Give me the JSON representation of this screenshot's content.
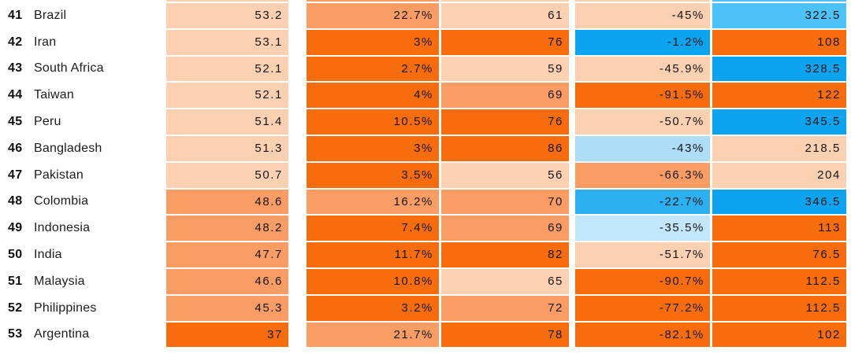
{
  "palette": {
    "p1": "#fcd1b2",
    "o2": "#fa9d64",
    "o3": "#f76d0d",
    "b1": "#aedef7",
    "b1l": "#c3e7fa",
    "b2": "#4cc2f6",
    "b3": "#0ca3ef",
    "b3l": "#2bb1f2",
    "text": "#161616",
    "background": "#ffffff"
  },
  "chart_data": {
    "type": "table",
    "title": "",
    "columns_visible": false,
    "partial_row_above": {
      "cell_colors": [
        "p1",
        "o2",
        "p1",
        "p1",
        "b2"
      ]
    },
    "rows": [
      {
        "rank": "41",
        "country": "Brazil",
        "cells": [
          {
            "v": "53.2",
            "c": "p1"
          },
          {
            "v": "22.7%",
            "c": "o2"
          },
          {
            "v": "61",
            "c": "p1"
          },
          {
            "v": "-45%",
            "c": "p1"
          },
          {
            "v": "322.5",
            "c": "b2"
          }
        ]
      },
      {
        "rank": "42",
        "country": "Iran",
        "cells": [
          {
            "v": "53.1",
            "c": "p1"
          },
          {
            "v": "3%",
            "c": "o3"
          },
          {
            "v": "76",
            "c": "o3"
          },
          {
            "v": "-1.2%",
            "c": "b3"
          },
          {
            "v": "108",
            "c": "o3"
          }
        ]
      },
      {
        "rank": "43",
        "country": "South Africa",
        "cells": [
          {
            "v": "52.1",
            "c": "p1"
          },
          {
            "v": "2.7%",
            "c": "o3"
          },
          {
            "v": "59",
            "c": "p1"
          },
          {
            "v": "-45.9%",
            "c": "p1"
          },
          {
            "v": "328.5",
            "c": "b3"
          }
        ]
      },
      {
        "rank": "44",
        "country": "Taiwan",
        "cells": [
          {
            "v": "52.1",
            "c": "p1"
          },
          {
            "v": "4%",
            "c": "o3"
          },
          {
            "v": "69",
            "c": "o2"
          },
          {
            "v": "-91.5%",
            "c": "o3"
          },
          {
            "v": "122",
            "c": "o3"
          }
        ]
      },
      {
        "rank": "45",
        "country": "Peru",
        "cells": [
          {
            "v": "51.4",
            "c": "p1"
          },
          {
            "v": "10.5%",
            "c": "o3"
          },
          {
            "v": "76",
            "c": "o3"
          },
          {
            "v": "-50.7%",
            "c": "p1"
          },
          {
            "v": "345.5",
            "c": "b3"
          }
        ]
      },
      {
        "rank": "46",
        "country": "Bangladesh",
        "cells": [
          {
            "v": "51.3",
            "c": "p1"
          },
          {
            "v": "3%",
            "c": "o3"
          },
          {
            "v": "86",
            "c": "o3"
          },
          {
            "v": "-43%",
            "c": "b1"
          },
          {
            "v": "218.5",
            "c": "p1"
          }
        ]
      },
      {
        "rank": "47",
        "country": "Pakistan",
        "cells": [
          {
            "v": "50.7",
            "c": "p1"
          },
          {
            "v": "3.5%",
            "c": "o3"
          },
          {
            "v": "56",
            "c": "p1"
          },
          {
            "v": "-66.3%",
            "c": "o2"
          },
          {
            "v": "204",
            "c": "p1"
          }
        ]
      },
      {
        "rank": "48",
        "country": "Colombia",
        "cells": [
          {
            "v": "48.6",
            "c": "o2"
          },
          {
            "v": "16.2%",
            "c": "o2"
          },
          {
            "v": "70",
            "c": "o2"
          },
          {
            "v": "-22.7%",
            "c": "b3l"
          },
          {
            "v": "346.5",
            "c": "b3"
          }
        ]
      },
      {
        "rank": "49",
        "country": "Indonesia",
        "cells": [
          {
            "v": "48.2",
            "c": "o2"
          },
          {
            "v": "7.4%",
            "c": "o3"
          },
          {
            "v": "69",
            "c": "o2"
          },
          {
            "v": "-35.5%",
            "c": "b1l"
          },
          {
            "v": "113",
            "c": "o3"
          }
        ]
      },
      {
        "rank": "50",
        "country": "India",
        "cells": [
          {
            "v": "47.7",
            "c": "o2"
          },
          {
            "v": "11.7%",
            "c": "o3"
          },
          {
            "v": "82",
            "c": "o3"
          },
          {
            "v": "-51.7%",
            "c": "p1"
          },
          {
            "v": "76.5",
            "c": "o3"
          }
        ]
      },
      {
        "rank": "51",
        "country": "Malaysia",
        "cells": [
          {
            "v": "46.6",
            "c": "o2"
          },
          {
            "v": "10.8%",
            "c": "o3"
          },
          {
            "v": "65",
            "c": "p1"
          },
          {
            "v": "-90.7%",
            "c": "o3"
          },
          {
            "v": "112.5",
            "c": "o3"
          }
        ]
      },
      {
        "rank": "52",
        "country": "Philippines",
        "cells": [
          {
            "v": "45.3",
            "c": "o2"
          },
          {
            "v": "3.2%",
            "c": "o3"
          },
          {
            "v": "72",
            "c": "o2"
          },
          {
            "v": "-77.2%",
            "c": "o3"
          },
          {
            "v": "112.5",
            "c": "o3"
          }
        ]
      },
      {
        "rank": "53",
        "country": "Argentina",
        "cells": [
          {
            "v": "37",
            "c": "o3"
          },
          {
            "v": "21.7%",
            "c": "o2"
          },
          {
            "v": "78",
            "c": "o3"
          },
          {
            "v": "-82.1%",
            "c": "o3"
          },
          {
            "v": "102",
            "c": "o3"
          }
        ]
      }
    ]
  }
}
